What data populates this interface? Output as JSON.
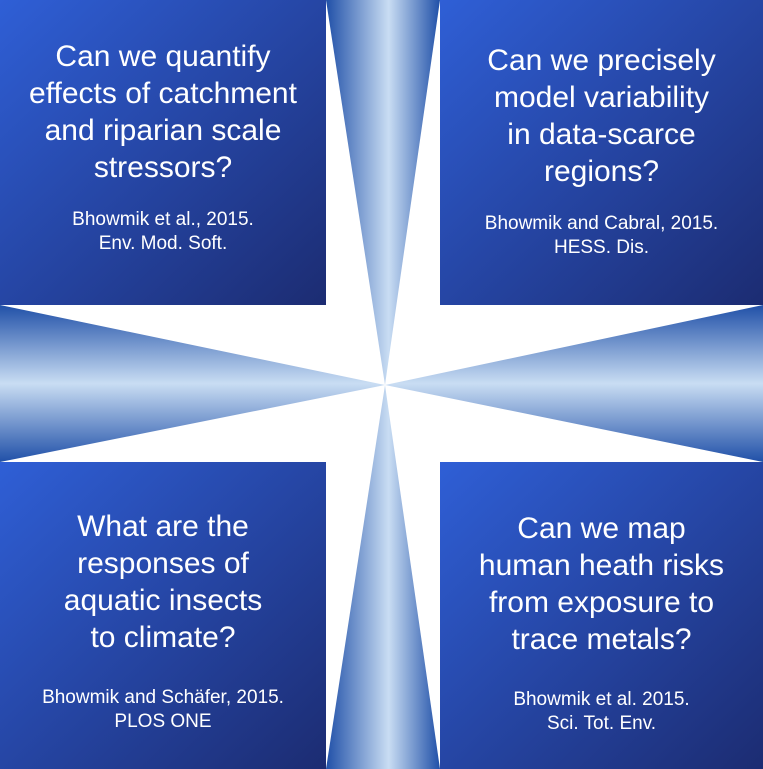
{
  "colors": {
    "box_light": "#2f5fd6",
    "box_dark": "#1c2c72",
    "ray_light": "#c9ddf3",
    "ray_dark": "#2050a8",
    "text": "#ffffff"
  },
  "quadrants": [
    {
      "question": "Can we quantify effects of catchment and riparian scale stressors?",
      "question_lines": [
        "Can we quantify",
        "effects of catchment",
        "and riparian scale",
        "stressors?"
      ],
      "citation_lines": [
        "Bhowmik et al., 2015.",
        "Env. Mod. Soft."
      ]
    },
    {
      "question": "Can we precisely model variability in data-scarce regions?",
      "question_lines": [
        "Can we precisely",
        "model variability",
        "in data-scarce",
        "regions?"
      ],
      "citation_lines": [
        "Bhowmik and Cabral, 2015.",
        "HESS. Dis."
      ]
    },
    {
      "question": "What are the responses of aquatic insects to climate?",
      "question_lines": [
        "What are the",
        "responses of",
        "aquatic insects",
        "to climate?"
      ],
      "citation_lines": [
        "Bhowmik and Schäfer, 2015.",
        "PLOS ONE"
      ]
    },
    {
      "question": "Can we map human heath risks from exposure to trace metals?",
      "question_lines": [
        "Can we map",
        "human heath risks",
        "from exposure to",
        "trace metals?"
      ],
      "citation_lines": [
        "Bhowmik et al. 2015.",
        "Sci. Tot. Env."
      ]
    }
  ]
}
